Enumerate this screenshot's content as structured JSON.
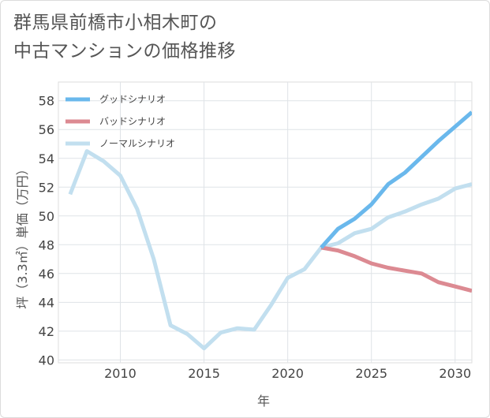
{
  "title_lines": [
    "群馬県前橋市小相木町の",
    "中古マンションの価格推移"
  ],
  "chart_data": {
    "type": "line",
    "xlabel": "年",
    "ylabel": "坪（3.3㎡）単価（万円）",
    "xlim": [
      2006.3,
      2031
    ],
    "ylim": [
      39.8,
      59.3
    ],
    "x_ticks": [
      2010,
      2015,
      2020,
      2025,
      2030
    ],
    "y_ticks": [
      40,
      42,
      44,
      46,
      48,
      50,
      52,
      54,
      56,
      58
    ],
    "grid": true,
    "legend_position": "top-left",
    "series": [
      {
        "name": "グッドシナリオ",
        "color": "#6ab8ec",
        "x": [
          2022,
          2023,
          2024,
          2025,
          2026,
          2027,
          2028,
          2029,
          2030,
          2031
        ],
        "values": [
          47.8,
          49.1,
          49.8,
          50.8,
          52.2,
          53.0,
          54.1,
          55.2,
          56.2,
          57.2
        ]
      },
      {
        "name": "バッドシナリオ",
        "color": "#dc8a92",
        "x": [
          2022,
          2023,
          2024,
          2025,
          2026,
          2027,
          2028,
          2029,
          2030,
          2031
        ],
        "values": [
          47.8,
          47.6,
          47.2,
          46.7,
          46.4,
          46.2,
          46.0,
          45.4,
          45.1,
          44.8
        ]
      },
      {
        "name": "ノーマルシナリオ",
        "color": "#c2dfef",
        "x": [
          2007,
          2008,
          2009,
          2010,
          2011,
          2012,
          2013,
          2014,
          2015,
          2016,
          2017,
          2018,
          2019,
          2020,
          2021,
          2022,
          2023,
          2024,
          2025,
          2026,
          2027,
          2028,
          2029,
          2030,
          2031
        ],
        "values": [
          51.5,
          54.5,
          53.8,
          52.8,
          50.5,
          47.0,
          42.4,
          41.8,
          40.8,
          41.9,
          42.2,
          42.1,
          43.8,
          45.7,
          46.3,
          47.8,
          48.1,
          48.8,
          49.1,
          49.9,
          50.3,
          50.8,
          51.2,
          51.9,
          52.2
        ]
      }
    ]
  }
}
